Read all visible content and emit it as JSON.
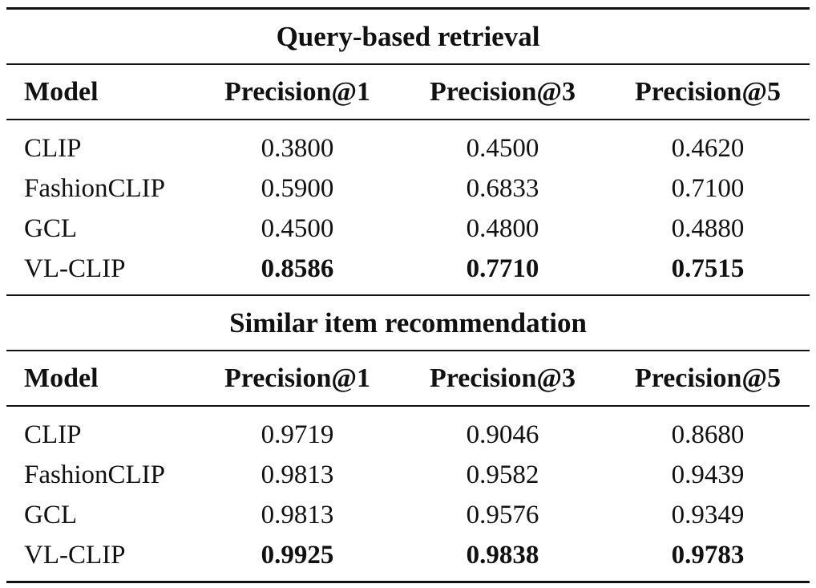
{
  "sections": [
    {
      "title": "Query-based retrieval",
      "header": [
        "Model",
        "Precision@1",
        "Precision@3",
        "Precision@5"
      ],
      "rows": [
        {
          "model": "CLIP",
          "p1": "0.3800",
          "p3": "0.4500",
          "p5": "0.4620"
        },
        {
          "model": "FashionCLIP",
          "p1": "0.5900",
          "p3": "0.6833",
          "p5": "0.7100"
        },
        {
          "model": "GCL",
          "p1": "0.4500",
          "p3": "0.4800",
          "p5": "0.4880"
        },
        {
          "model": "VL-CLIP",
          "p1": "0.8586",
          "p3": "0.7710",
          "p5": "0.7515"
        }
      ]
    },
    {
      "title": "Similar item recommendation",
      "header": [
        "Model",
        "Precision@1",
        "Precision@3",
        "Precision@5"
      ],
      "rows": [
        {
          "model": "CLIP",
          "p1": "0.9719",
          "p3": "0.9046",
          "p5": "0.8680"
        },
        {
          "model": "FashionCLIP",
          "p1": "0.9813",
          "p3": "0.9582",
          "p5": "0.9439"
        },
        {
          "model": "GCL",
          "p1": "0.9813",
          "p3": "0.9576",
          "p5": "0.9349"
        },
        {
          "model": "VL-CLIP",
          "p1": "0.9925",
          "p3": "0.9838",
          "p5": "0.9783"
        }
      ]
    }
  ]
}
